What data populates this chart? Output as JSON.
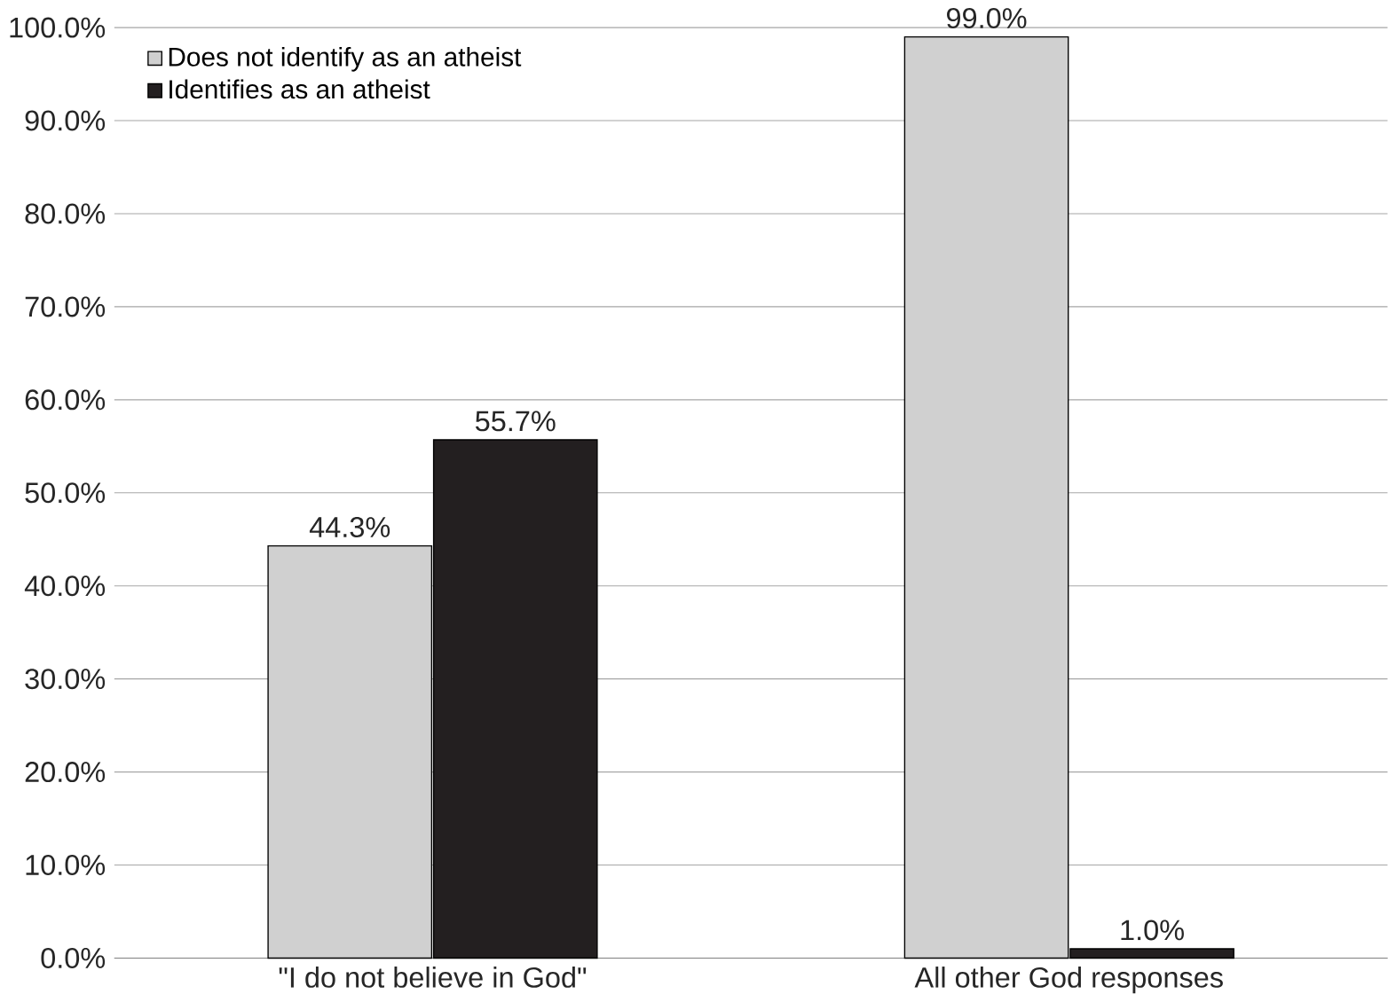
{
  "chart_data": {
    "type": "bar",
    "categories": [
      "\"I do not believe in God\"",
      "All other God responses"
    ],
    "series": [
      {
        "name": "Does not identify as an atheist",
        "color": "#d0d0d0",
        "values": [
          44.3,
          99.0
        ],
        "value_labels": [
          "44.3%",
          "99.0%"
        ]
      },
      {
        "name": "Identifies as an atheist",
        "color": "#231f20",
        "values": [
          55.7,
          1.0
        ],
        "value_labels": [
          "55.7%",
          "1.0%"
        ]
      }
    ],
    "ylim": [
      0,
      100
    ],
    "yticks": [
      {
        "value": 0,
        "label": "0.0%"
      },
      {
        "value": 10,
        "label": "10.0%"
      },
      {
        "value": 20,
        "label": "20.0%"
      },
      {
        "value": 30,
        "label": "30.0%"
      },
      {
        "value": 40,
        "label": "40.0%"
      },
      {
        "value": 50,
        "label": "50.0%"
      },
      {
        "value": 60,
        "label": "60.0%"
      },
      {
        "value": 70,
        "label": "70.0%"
      },
      {
        "value": 80,
        "label": "80.0%"
      },
      {
        "value": 90,
        "label": "90.0%"
      },
      {
        "value": 100,
        "label": "100.0%"
      }
    ],
    "grid": "y",
    "legend": "top left"
  }
}
